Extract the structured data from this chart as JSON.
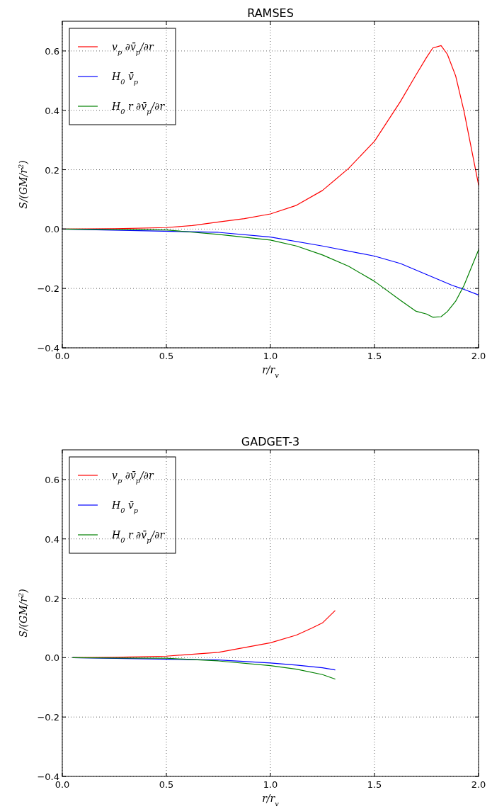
{
  "chart_data": [
    {
      "type": "line",
      "title": "RAMSES",
      "xlabel": "r/r$_{v}$",
      "ylabel": "S/(GM/r$^{2}$)",
      "xlim": [
        0,
        2
      ],
      "ylim": [
        -0.4,
        0.7
      ],
      "xticks": [
        {
          "value": 0,
          "label": "0.0"
        },
        {
          "value": 0.5,
          "label": "0.5"
        },
        {
          "value": 1,
          "label": "1.0"
        },
        {
          "value": 1.5,
          "label": "1.5"
        },
        {
          "value": 2,
          "label": "2.0"
        }
      ],
      "yticks": [
        {
          "value": -0.4,
          "label": "−0.4"
        },
        {
          "value": -0.2,
          "label": "−0.2"
        },
        {
          "value": 0,
          "label": "0.0"
        },
        {
          "value": 0.2,
          "label": "0.2"
        },
        {
          "value": 0.4,
          "label": "0.4"
        },
        {
          "value": 0.6,
          "label": "0.6"
        }
      ],
      "grid": true,
      "legend": "top left",
      "line_style": "solid",
      "series": [
        {
          "name": "v$_{p}$ ∂v̄$_{p}$/∂r",
          "color": "#ff0000",
          "x": [
            0,
            0.25,
            0.5,
            0.625,
            0.75,
            0.875,
            1.0,
            1.125,
            1.25,
            1.375,
            1.5,
            1.625,
            1.7,
            1.75,
            1.78,
            1.82,
            1.85,
            1.89,
            1.93,
            2.0
          ],
          "values": [
            0,
            0.001,
            0.005,
            0.012,
            0.024,
            0.035,
            0.051,
            0.08,
            0.13,
            0.204,
            0.296,
            0.43,
            0.52,
            0.578,
            0.61,
            0.618,
            0.589,
            0.516,
            0.397,
            0.149
          ]
        },
        {
          "name": "H$_{0}$ v̄$_{p}$",
          "color": "#0000ff",
          "x": [
            0,
            0.75,
            1.0,
            1.25,
            1.5,
            1.625,
            1.75,
            1.875,
            1.93,
            2.0
          ],
          "values": [
            0,
            -0.011,
            -0.027,
            -0.057,
            -0.091,
            -0.116,
            -0.153,
            -0.19,
            -0.203,
            -0.222
          ]
        },
        {
          "name": "H$_{0}$ r ∂v̄$_{p}$/∂r",
          "color": "#008000",
          "x": [
            0,
            0.25,
            0.5,
            0.75,
            1.0,
            1.125,
            1.25,
            1.375,
            1.5,
            1.625,
            1.7,
            1.75,
            1.78,
            1.82,
            1.85,
            1.89,
            1.93,
            2.0
          ],
          "values": [
            0,
            -0.001,
            -0.003,
            -0.018,
            -0.037,
            -0.057,
            -0.087,
            -0.125,
            -0.176,
            -0.24,
            -0.277,
            -0.286,
            -0.297,
            -0.295,
            -0.278,
            -0.243,
            -0.19,
            -0.07
          ]
        }
      ]
    },
    {
      "type": "line",
      "title": "GADGET-3",
      "xlabel": "r/r$_{v}$",
      "ylabel": "S/(GM/r$^{2}$)",
      "xlim": [
        0,
        2
      ],
      "ylim": [
        -0.4,
        0.7
      ],
      "xticks": [
        {
          "value": 0,
          "label": "0.0"
        },
        {
          "value": 0.5,
          "label": "0.5"
        },
        {
          "value": 1,
          "label": "1.0"
        },
        {
          "value": 1.5,
          "label": "1.5"
        },
        {
          "value": 2,
          "label": "2.0"
        }
      ],
      "yticks": [
        {
          "value": -0.4,
          "label": "−0.4"
        },
        {
          "value": -0.2,
          "label": "−0.2"
        },
        {
          "value": 0,
          "label": "0.0"
        },
        {
          "value": 0.2,
          "label": "0.2"
        },
        {
          "value": 0.4,
          "label": "0.4"
        },
        {
          "value": 0.6,
          "label": "0.6"
        }
      ],
      "grid": true,
      "legend": "top left",
      "line_style": "solid",
      "series": [
        {
          "name": "v$_{p}$ ∂v̄$_{p}$/∂r",
          "color": "#ff0000",
          "x": [
            0.05,
            0.25,
            0.5,
            0.75,
            1.0,
            1.125,
            1.2,
            1.25,
            1.31
          ],
          "values": [
            0,
            0.001,
            0.005,
            0.018,
            0.05,
            0.076,
            0.1,
            0.117,
            0.158
          ]
        },
        {
          "name": "H$_{0}$ v̄$_{p}$",
          "color": "#0000ff",
          "x": [
            0.05,
            0.75,
            1.0,
            1.125,
            1.25,
            1.31
          ],
          "values": [
            0,
            -0.008,
            -0.018,
            -0.025,
            -0.034,
            -0.041
          ]
        },
        {
          "name": "H$_{0}$ r ∂v̄$_{p}$/∂r",
          "color": "#008000",
          "x": [
            0.05,
            0.25,
            0.5,
            0.75,
            1.0,
            1.125,
            1.25,
            1.31
          ],
          "values": [
            0,
            -0.001,
            -0.002,
            -0.011,
            -0.027,
            -0.039,
            -0.057,
            -0.072
          ]
        }
      ]
    }
  ]
}
